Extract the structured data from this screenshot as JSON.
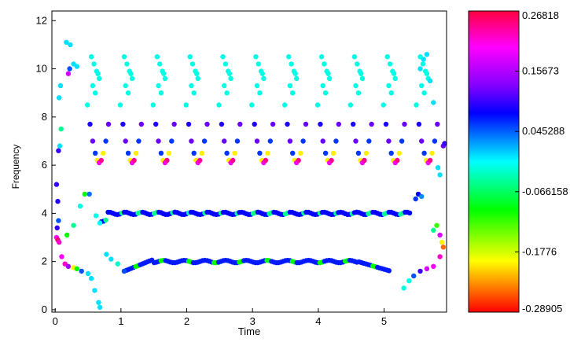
{
  "chart_data": {
    "type": "scatter",
    "xlabel": "Time",
    "ylabel": "Frequency",
    "xlim": [
      -0.05,
      5.95
    ],
    "ylim": [
      -0.1,
      12.4
    ],
    "grid": false,
    "xticks": [
      0,
      1,
      2,
      3,
      4,
      5
    ],
    "yticks": [
      0,
      2,
      4,
      6,
      8,
      10,
      12
    ],
    "colorbar": {
      "min": -0.28905,
      "max": 0.26818,
      "tick_labels": [
        "0.26818",
        "0.15673",
        "0.045288",
        "-0.066158",
        "-0.1776",
        "-0.28905"
      ],
      "tick_values": [
        0.26818,
        0.15673,
        0.045288,
        -0.066158,
        -0.1776,
        -0.28905
      ],
      "colormap": "hsv"
    },
    "patterns": {
      "period": 0.5,
      "harmonic_columns": [
        {
          "x": 0.3,
          "y": 8.5,
          "c": -0.02
        },
        {
          "x": 0.45,
          "y": 7.5,
          "c": 0.1
        },
        {
          "x": 0.5,
          "y": 6.6,
          "c": 0.12
        },
        {
          "x": 0.55,
          "y": 6.1,
          "c": -0.2
        },
        {
          "x": 0.6,
          "y": 6.1,
          "c": 0.2
        }
      ],
      "band_4hz": {
        "y": 4.0,
        "c": 0.08
      },
      "band_2hz": {
        "y": 2.0,
        "c": 0.07
      },
      "top_cyan": {
        "y_min": 9.0,
        "y_max": 10.6,
        "c": -0.02
      }
    },
    "points": [
      {
        "x": 0.02,
        "y": 3.0,
        "c": 0.2
      },
      {
        "x": 0.04,
        "y": 2.9,
        "c": 0.25
      },
      {
        "x": 0.06,
        "y": 2.8,
        "c": 0.22
      },
      {
        "x": 0.03,
        "y": 3.4,
        "c": 0.1
      },
      {
        "x": 0.05,
        "y": 3.7,
        "c": 0.05
      },
      {
        "x": 0.02,
        "y": 5.2,
        "c": 0.1
      },
      {
        "x": 0.04,
        "y": 4.5,
        "c": 0.09
      },
      {
        "x": 0.05,
        "y": 6.6,
        "c": 0.1
      },
      {
        "x": 0.07,
        "y": 6.8,
        "c": 0.0
      },
      {
        "x": 0.09,
        "y": 7.5,
        "c": -0.05
      },
      {
        "x": 0.06,
        "y": 8.8,
        "c": 0.0
      },
      {
        "x": 0.08,
        "y": 9.3,
        "c": 0.0
      },
      {
        "x": 0.2,
        "y": 9.8,
        "c": 0.18
      },
      {
        "x": 0.22,
        "y": 10.0,
        "c": 0.05
      },
      {
        "x": 0.17,
        "y": 11.1,
        "c": 0.0
      },
      {
        "x": 0.23,
        "y": 11.0,
        "c": 0.0
      },
      {
        "x": 0.28,
        "y": 10.2,
        "c": 0.0
      },
      {
        "x": 0.33,
        "y": 10.1,
        "c": 0.0
      },
      {
        "x": 0.1,
        "y": 2.2,
        "c": 0.2
      },
      {
        "x": 0.15,
        "y": 1.9,
        "c": 0.22
      },
      {
        "x": 0.2,
        "y": 1.8,
        "c": 0.15
      },
      {
        "x": 0.28,
        "y": 1.75,
        "c": -0.2
      },
      {
        "x": 0.33,
        "y": 1.7,
        "c": -0.1
      },
      {
        "x": 0.4,
        "y": 1.6,
        "c": 0.05
      },
      {
        "x": 0.5,
        "y": 1.5,
        "c": 0.0
      },
      {
        "x": 0.55,
        "y": 1.3,
        "c": 0.0
      },
      {
        "x": 0.6,
        "y": 0.8,
        "c": 0.0
      },
      {
        "x": 0.66,
        "y": 0.3,
        "c": 0.0
      },
      {
        "x": 0.68,
        "y": 0.1,
        "c": 0.0
      },
      {
        "x": 0.78,
        "y": 2.3,
        "c": 0.0
      },
      {
        "x": 0.85,
        "y": 2.1,
        "c": 0.0
      },
      {
        "x": 0.95,
        "y": 1.9,
        "c": -0.03
      },
      {
        "x": 1.05,
        "y": 1.6,
        "c": 0.05
      },
      {
        "x": 0.18,
        "y": 3.1,
        "c": -0.1
      },
      {
        "x": 0.28,
        "y": 3.5,
        "c": -0.05
      },
      {
        "x": 0.38,
        "y": 4.3,
        "c": -0.02
      },
      {
        "x": 0.45,
        "y": 4.8,
        "c": -0.1
      },
      {
        "x": 0.52,
        "y": 4.8,
        "c": 0.04
      },
      {
        "x": 0.62,
        "y": 3.9,
        "c": -0.02
      },
      {
        "x": 0.68,
        "y": 3.6,
        "c": -0.01
      },
      {
        "x": 5.3,
        "y": 0.9,
        "c": -0.02
      },
      {
        "x": 5.38,
        "y": 1.2,
        "c": -0.02
      },
      {
        "x": 5.45,
        "y": 1.4,
        "c": 0.05
      },
      {
        "x": 5.55,
        "y": 1.6,
        "c": 0.1
      },
      {
        "x": 5.65,
        "y": 1.7,
        "c": 0.18
      },
      {
        "x": 5.75,
        "y": 1.8,
        "c": 0.2
      },
      {
        "x": 5.85,
        "y": 2.2,
        "c": 0.22
      },
      {
        "x": 5.88,
        "y": 2.8,
        "c": -0.2
      },
      {
        "x": 5.9,
        "y": 2.6,
        "c": -0.25
      },
      {
        "x": 5.85,
        "y": 3.1,
        "c": 0.18
      },
      {
        "x": 5.8,
        "y": 3.5,
        "c": -0.12
      },
      {
        "x": 5.75,
        "y": 3.3,
        "c": -0.05
      },
      {
        "x": 5.52,
        "y": 4.8,
        "c": 0.08
      },
      {
        "x": 5.48,
        "y": 4.6,
        "c": 0.06
      },
      {
        "x": 5.57,
        "y": 4.7,
        "c": 0.03
      },
      {
        "x": 5.6,
        "y": 10.4,
        "c": 0.0
      },
      {
        "x": 5.65,
        "y": 10.6,
        "c": 0.0
      },
      {
        "x": 5.55,
        "y": 10.0,
        "c": 0.0
      },
      {
        "x": 5.7,
        "y": 9.5,
        "c": 0.0
      },
      {
        "x": 5.75,
        "y": 8.6,
        "c": 0.0
      },
      {
        "x": 5.82,
        "y": 5.9,
        "c": 0.0
      },
      {
        "x": 5.85,
        "y": 5.6,
        "c": 0.0
      },
      {
        "x": 5.9,
        "y": 6.8,
        "c": 0.12
      },
      {
        "x": 5.92,
        "y": 6.9,
        "c": 0.1
      }
    ]
  }
}
